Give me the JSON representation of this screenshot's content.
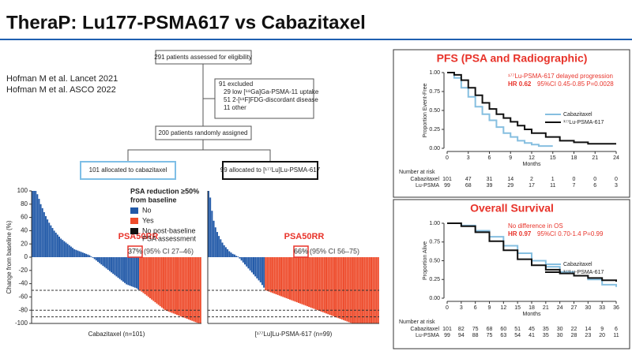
{
  "header": {
    "title": "TheraP: Lu177-PSMA617 vs Cabazitaxel"
  },
  "references": [
    "Hofman M et al. Lancet 2021",
    "Hofman M et al. ASCO 2022"
  ],
  "flowchart": {
    "assessed": "291 patients assessed for eligibility",
    "excluded": [
      "91 excluded",
      "29 low [⁶⁸Ga]Ga-PSMA-11 uptake",
      "51 2-[¹⁸F]FDG-discordant disease",
      "11 other"
    ],
    "randomized": "200 patients randomly assigned",
    "arms": [
      "101 allocated to cabazitaxel",
      "99 allocated to [¹⁷⁷Lu]Lu-PSMA-617"
    ]
  },
  "chart_data": [
    {
      "type": "bar",
      "y_label": "Change from baseline (%)",
      "x_label": "Cabazitaxel (n=101)",
      "ylim": [
        -100,
        100
      ],
      "yticks": [
        100,
        80,
        60,
        40,
        20,
        0,
        -20,
        -40,
        -60,
        -80,
        -100
      ],
      "reference_lines": [
        -50,
        -80,
        -90
      ],
      "legend_title": [
        "PSA reduction ≥50%",
        "from baseline"
      ],
      "legend": [
        {
          "label": "No",
          "color": "#2159a8"
        },
        {
          "label": "Yes",
          "color": "#ee4b2b"
        },
        {
          "label": [
            "No post-baseline",
            "PSA assessment"
          ],
          "color": "#111111"
        }
      ],
      "annotation": "PSA50RR",
      "response_rate": "37%",
      "ci": "(95% CI 27–46)",
      "values": [
        100,
        100,
        100,
        95,
        88,
        80,
        74,
        68,
        62,
        57,
        52,
        48,
        44,
        40,
        37,
        34,
        31,
        28,
        26,
        24,
        22,
        20,
        18,
        16,
        14,
        12,
        11,
        10,
        9,
        8,
        7,
        6,
        5,
        4,
        3,
        1,
        -1,
        -3,
        -5,
        -7,
        -9,
        -11,
        -13,
        -15,
        -17,
        -19,
        -21,
        -23,
        -25,
        -27,
        -29,
        -31,
        -33,
        -35,
        -37,
        -39,
        -41,
        -42,
        -43,
        -44,
        -45,
        -46,
        -47,
        -49,
        -50,
        -52,
        -54,
        -56,
        -58,
        -60,
        -62,
        -64,
        -66,
        -68,
        -70,
        -72,
        -74,
        -76,
        -78,
        -80,
        -81,
        -82,
        -83,
        -84,
        -85,
        -86,
        -87,
        -88,
        -89,
        -90,
        -91,
        -92,
        -93,
        -94,
        -95,
        -96,
        -97,
        -98,
        -99,
        -100,
        -100
      ]
    },
    {
      "type": "bar",
      "x_label": "[¹⁷⁷Lu]Lu-PSMA-617 (n=99)",
      "ylim": [
        -100,
        100
      ],
      "reference_lines": [
        -50,
        -80,
        -90
      ],
      "colors": [
        "#2159a8",
        "#ee4b2b"
      ],
      "annotation": "PSA50RR",
      "response_rate": "66%",
      "ci": "(95% CI 56–75)",
      "values": [
        100,
        90,
        70,
        55,
        45,
        38,
        32,
        27,
        22,
        18,
        15,
        12,
        9,
        7,
        5,
        4,
        2,
        1,
        -2,
        -5,
        -8,
        -11,
        -14,
        -17,
        -20,
        -23,
        -26,
        -29,
        -32,
        -35,
        -38,
        -42,
        -46,
        -50,
        -51,
        -52,
        -53,
        -54,
        -55,
        -56,
        -57,
        -58,
        -59,
        -60,
        -61,
        -62,
        -63,
        -64,
        -65,
        -66,
        -67,
        -68,
        -69,
        -70,
        -71,
        -72,
        -73,
        -74,
        -75,
        -76,
        -77,
        -78,
        -79,
        -80,
        -81,
        -82,
        -83,
        -84,
        -85,
        -86,
        -87,
        -88,
        -89,
        -90,
        -91,
        -92,
        -93,
        -94,
        -95,
        -96,
        -97,
        -98,
        -99,
        -100,
        -100,
        -100,
        -100,
        -100,
        -100,
        -100,
        -100,
        -100,
        -100,
        -100,
        -100,
        -100,
        -100,
        -100,
        -100
      ]
    },
    {
      "type": "line",
      "title": "PFS (PSA and Radiographic)",
      "annotation": "¹⁷⁷Lu-PSMA-617 delayed progression",
      "hr": "HR 0.62",
      "stats": "95%CI 0.45-0.85  P=0.0028",
      "y_label": "Proportion Event-Free",
      "x_label": "Months",
      "xlim": [
        0,
        24
      ],
      "xticks": [
        0,
        3,
        6,
        9,
        12,
        15,
        18,
        21,
        24
      ],
      "ylim": [
        0,
        1
      ],
      "yticks": [
        {
          "value": 0,
          "label": "0.00"
        },
        {
          "value": 0.25,
          "label": "0.25"
        },
        {
          "value": 0.5,
          "label": "0.50"
        },
        {
          "value": 0.75,
          "label": "0.75"
        },
        {
          "value": 1,
          "label": "1.00"
        }
      ],
      "series": [
        {
          "name": "Cabazitaxel",
          "color": "#86bfe0",
          "x": [
            0,
            1,
            2,
            3,
            4,
            5,
            6,
            7,
            8,
            9,
            10,
            11,
            12,
            13,
            15
          ],
          "values": [
            1,
            0.93,
            0.8,
            0.68,
            0.55,
            0.45,
            0.37,
            0.28,
            0.2,
            0.15,
            0.1,
            0.07,
            0.05,
            0.03,
            0.03
          ]
        },
        {
          "name": "¹⁷⁷Lu-PSMA-617",
          "color": "#111111",
          "x": [
            0,
            1,
            2,
            3,
            4,
            5,
            6,
            7,
            8,
            9,
            10,
            11,
            12,
            14,
            16,
            18,
            20,
            24
          ],
          "values": [
            1,
            0.97,
            0.9,
            0.8,
            0.7,
            0.6,
            0.52,
            0.45,
            0.4,
            0.35,
            0.3,
            0.25,
            0.2,
            0.15,
            0.1,
            0.08,
            0.06,
            0.06
          ]
        }
      ],
      "risk_table": {
        "title": "Number at risk",
        "rows": [
          {
            "name": "Cabazitaxel",
            "values": [
              101,
              47,
              31,
              14,
              2,
              1,
              0,
              0,
              0
            ]
          },
          {
            "name": "Lu-PSMA",
            "values": [
              99,
              68,
              39,
              29,
              17,
              11,
              7,
              6,
              3
            ]
          }
        ]
      }
    },
    {
      "type": "line",
      "title": "Overall Survival",
      "annotation": "No difference in OS",
      "hr": "HR 0.97",
      "stats": "95%CI 0.70-1.4  P=0.99",
      "y_label": "Proportion Alive",
      "x_label": "Months",
      "xlim": [
        0,
        36
      ],
      "xticks": [
        0,
        3,
        6,
        9,
        12,
        15,
        18,
        21,
        24,
        27,
        30,
        33,
        36
      ],
      "ylim": [
        0,
        1
      ],
      "yticks": [
        {
          "value": 0,
          "label": "0.00"
        },
        {
          "value": 0.25,
          "label": "0.25"
        },
        {
          "value": 0.5,
          "label": "0.50"
        },
        {
          "value": 0.75,
          "label": "0.75"
        },
        {
          "value": 1,
          "label": "1.00"
        }
      ],
      "series": [
        {
          "name": "Cabazitaxel",
          "color": "#86bfe0",
          "x": [
            0,
            3,
            6,
            9,
            12,
            15,
            18,
            21,
            24,
            27,
            30,
            33,
            36
          ],
          "values": [
            1,
            0.97,
            0.9,
            0.82,
            0.7,
            0.6,
            0.5,
            0.42,
            0.35,
            0.3,
            0.25,
            0.18,
            0.15
          ]
        },
        {
          "name": "¹⁷⁷Lu-PSMA-617",
          "color": "#111111",
          "x": [
            0,
            3,
            6,
            9,
            12,
            15,
            18,
            21,
            24,
            27,
            30,
            33,
            36
          ],
          "values": [
            1,
            0.96,
            0.88,
            0.76,
            0.64,
            0.52,
            0.44,
            0.38,
            0.33,
            0.3,
            0.27,
            0.24,
            0.22
          ]
        }
      ],
      "risk_table": {
        "title": "Number at risk",
        "rows": [
          {
            "name": "Cabazitaxel",
            "values": [
              101,
              82,
              75,
              68,
              60,
              51,
              45,
              35,
              30,
              22,
              14,
              9,
              6
            ]
          },
          {
            "name": "Lu-PSMA",
            "values": [
              99,
              94,
              88,
              75,
              63,
              54,
              41,
              35,
              30,
              28,
              23,
              20,
              11
            ]
          }
        ]
      }
    }
  ]
}
